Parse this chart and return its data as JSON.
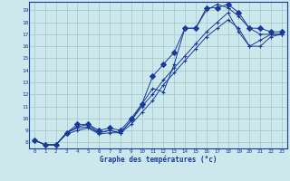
{
  "xlabel": "Graphe des températures (°c)",
  "bg_color": "#cce8ec",
  "grid_color": "#aacccc",
  "line_color": "#1a3a9a",
  "xlim": [
    -0.5,
    23.5
  ],
  "ylim": [
    7.5,
    19.7
  ],
  "x_ticks": [
    0,
    1,
    2,
    3,
    4,
    5,
    6,
    7,
    8,
    9,
    10,
    11,
    12,
    13,
    14,
    15,
    16,
    17,
    18,
    19,
    20,
    21,
    22,
    23
  ],
  "y_ticks": [
    8,
    9,
    10,
    11,
    12,
    13,
    14,
    15,
    16,
    17,
    18,
    19
  ],
  "lines": [
    {
      "x": [
        0,
        1,
        2,
        3,
        4,
        5,
        6,
        7,
        8,
        9,
        10,
        11,
        12,
        13,
        14,
        15,
        16,
        17,
        18,
        19,
        20,
        21,
        22,
        23
      ],
      "y": [
        8.2,
        7.8,
        7.8,
        8.8,
        9.3,
        9.5,
        8.8,
        9.0,
        8.8,
        9.8,
        11.2,
        12.5,
        12.2,
        14.5,
        17.5,
        17.5,
        19.0,
        19.5,
        19.2,
        18.5,
        17.5,
        17.0,
        17.0,
        17.0
      ],
      "marker": "+"
    },
    {
      "x": [
        0,
        1,
        2,
        3,
        4,
        5,
        6,
        7,
        8,
        9,
        10,
        11,
        12,
        13,
        14,
        15,
        16,
        17,
        18,
        19,
        20,
        21,
        22,
        23
      ],
      "y": [
        8.2,
        7.8,
        7.8,
        8.8,
        9.5,
        9.5,
        9.0,
        9.2,
        9.0,
        10.0,
        11.2,
        13.5,
        14.5,
        15.5,
        17.5,
        17.5,
        19.2,
        19.2,
        19.5,
        18.8,
        17.5,
        17.5,
        17.2,
        17.2
      ],
      "marker": "D"
    },
    {
      "x": [
        0,
        1,
        2,
        3,
        4,
        5,
        6,
        7,
        8,
        9,
        10,
        11,
        12,
        13,
        14,
        15,
        16,
        17,
        18,
        19,
        20,
        21,
        22,
        23
      ],
      "y": [
        8.2,
        7.8,
        7.8,
        8.8,
        9.2,
        9.3,
        8.8,
        9.0,
        8.8,
        9.8,
        11.0,
        12.0,
        13.2,
        14.2,
        15.2,
        16.2,
        17.2,
        18.0,
        18.8,
        17.2,
        16.0,
        16.0,
        16.8,
        17.0
      ],
      "marker": "+"
    },
    {
      "x": [
        0,
        1,
        2,
        3,
        4,
        5,
        6,
        7,
        8,
        9,
        10,
        11,
        12,
        13,
        14,
        15,
        16,
        17,
        18,
        19,
        20,
        21,
        22,
        23
      ],
      "y": [
        8.2,
        7.8,
        7.8,
        8.7,
        9.0,
        9.2,
        8.7,
        8.8,
        8.8,
        9.5,
        10.5,
        11.5,
        12.8,
        13.8,
        14.8,
        15.8,
        16.8,
        17.5,
        18.2,
        17.5,
        16.0,
        16.5,
        17.0,
        17.0
      ],
      "marker": "+"
    }
  ]
}
